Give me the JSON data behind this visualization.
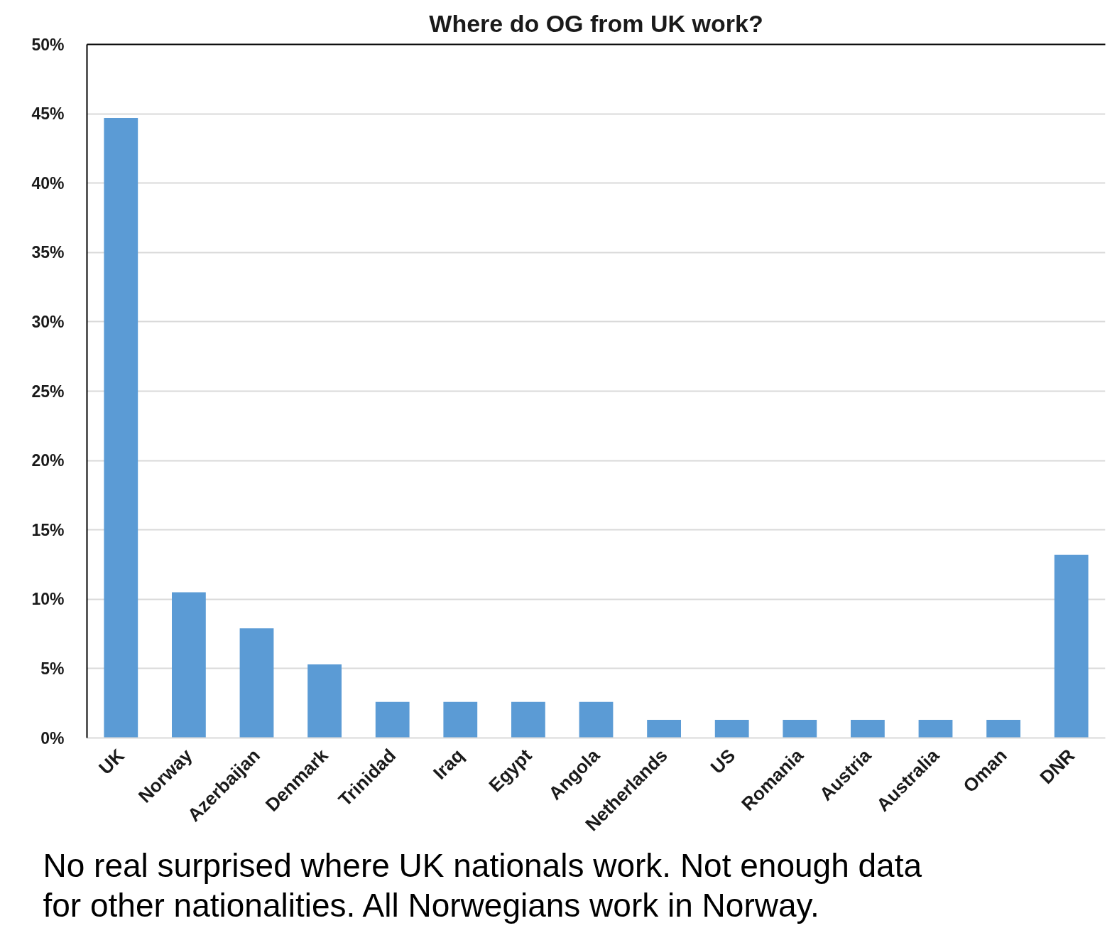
{
  "chart_data": {
    "type": "bar",
    "title": "Where do OG from UK work?",
    "categories": [
      "UK",
      "Norway",
      "Azerbaijan",
      "Denmark",
      "Trinidad",
      "Iraq",
      "Egypt",
      "Angola",
      "Netherlands",
      "US",
      "Romania",
      "Austria",
      "Australia",
      "Oman",
      "DNR"
    ],
    "values": [
      44.7,
      10.5,
      7.9,
      5.3,
      2.6,
      2.6,
      2.6,
      2.6,
      1.3,
      1.3,
      1.3,
      1.3,
      1.3,
      1.3,
      13.2
    ],
    "color": "#5b9bd5",
    "ylim": [
      0,
      50
    ],
    "yticks": [
      {
        "value": 0,
        "label": "0%"
      },
      {
        "value": 5,
        "label": "5%"
      },
      {
        "value": 10,
        "label": "10%"
      },
      {
        "value": 15,
        "label": "15%"
      },
      {
        "value": 20,
        "label": "20%"
      },
      {
        "value": 25,
        "label": "25%"
      },
      {
        "value": 30,
        "label": "30%"
      },
      {
        "value": 35,
        "label": "35%"
      },
      {
        "value": 40,
        "label": "40%"
      },
      {
        "value": 45,
        "label": "45%"
      },
      {
        "value": 50,
        "label": "50%"
      }
    ],
    "grid": "y",
    "annotations": [
      "No real surprised where UK nationals work. Not enough data for other nationalities. All Norwegians work in Norway."
    ]
  }
}
